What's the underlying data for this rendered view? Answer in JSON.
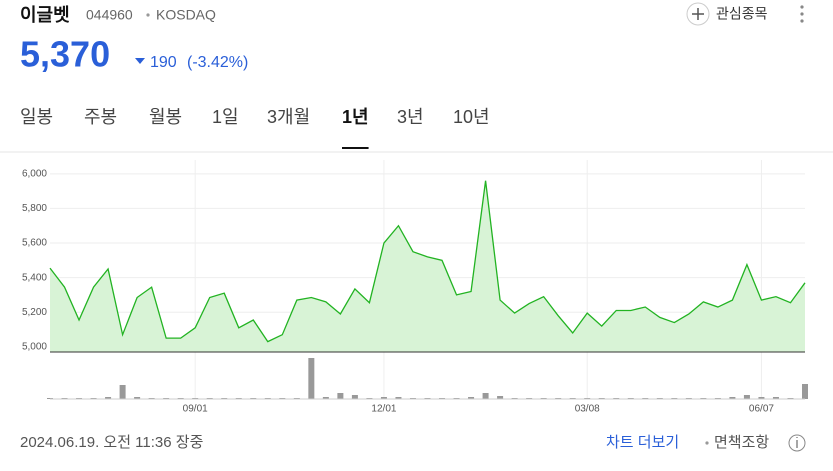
{
  "header": {
    "name": "이글벳",
    "code": "044960",
    "market": "KOSDAQ",
    "watch_button": "관심종목",
    "price": "5,370",
    "change": "190",
    "change_pct": "(-3.42%)"
  },
  "tabs": [
    "일봉",
    "주봉",
    "월봉",
    "1일",
    "3개월",
    "1년",
    "3년",
    "10년"
  ],
  "active_tab": 5,
  "chart_data": {
    "type": "line",
    "color": "#22b322",
    "categories": [
      null,
      null,
      null,
      null,
      null,
      null,
      null,
      null,
      null,
      null,
      "09/01",
      null,
      null,
      null,
      null,
      null,
      null,
      null,
      null,
      null,
      null,
      null,
      null,
      "12/01",
      null,
      null,
      null,
      null,
      null,
      null,
      null,
      null,
      null,
      null,
      null,
      null,
      null,
      "03/08",
      null,
      null,
      null,
      null,
      null,
      null,
      null,
      null,
      null,
      null,
      null,
      "06/07",
      null,
      null,
      null
    ],
    "values": [
      5455,
      5345,
      5155,
      5345,
      5450,
      5070,
      5285,
      5345,
      5050,
      5050,
      5110,
      5285,
      5310,
      5110,
      5155,
      5030,
      5070,
      5270,
      5285,
      5260,
      5190,
      5335,
      5255,
      5600,
      5700,
      5550,
      5520,
      5500,
      5300,
      5320,
      5960,
      5270,
      5195,
      5250,
      5290,
      5180,
      5080,
      5195,
      5120,
      5210,
      5210,
      5230,
      5170,
      5140,
      5190,
      5260,
      5230,
      5270,
      5475,
      5270,
      5290,
      5255,
      5370
    ],
    "volume": [
      1,
      1,
      1,
      1,
      2,
      14,
      2,
      1,
      1,
      1,
      1,
      1,
      1,
      1,
      1,
      1,
      1,
      1,
      41,
      2,
      6,
      4,
      1,
      2,
      2,
      1,
      1,
      1,
      1,
      2,
      6,
      3,
      1,
      1,
      1,
      1,
      1,
      1,
      1,
      1,
      1,
      1,
      1,
      1,
      1,
      1,
      1,
      2,
      4,
      2,
      2,
      1,
      15
    ],
    "ylim": [
      4970,
      6080
    ],
    "yticks": [
      {
        "value": 5000,
        "label": "5,000"
      },
      {
        "value": 5200,
        "label": "5,200"
      },
      {
        "value": 5400,
        "label": "5,400"
      },
      {
        "value": 5600,
        "label": "5,600"
      },
      {
        "value": 5800,
        "label": "5,800"
      },
      {
        "value": 6000,
        "label": "6,000"
      }
    ],
    "grid": true
  },
  "footer": {
    "timestamp": "2024.06.19. 오전 11:36 장중",
    "more_chart": "차트 더보기",
    "disclaimer": "면책조항"
  }
}
